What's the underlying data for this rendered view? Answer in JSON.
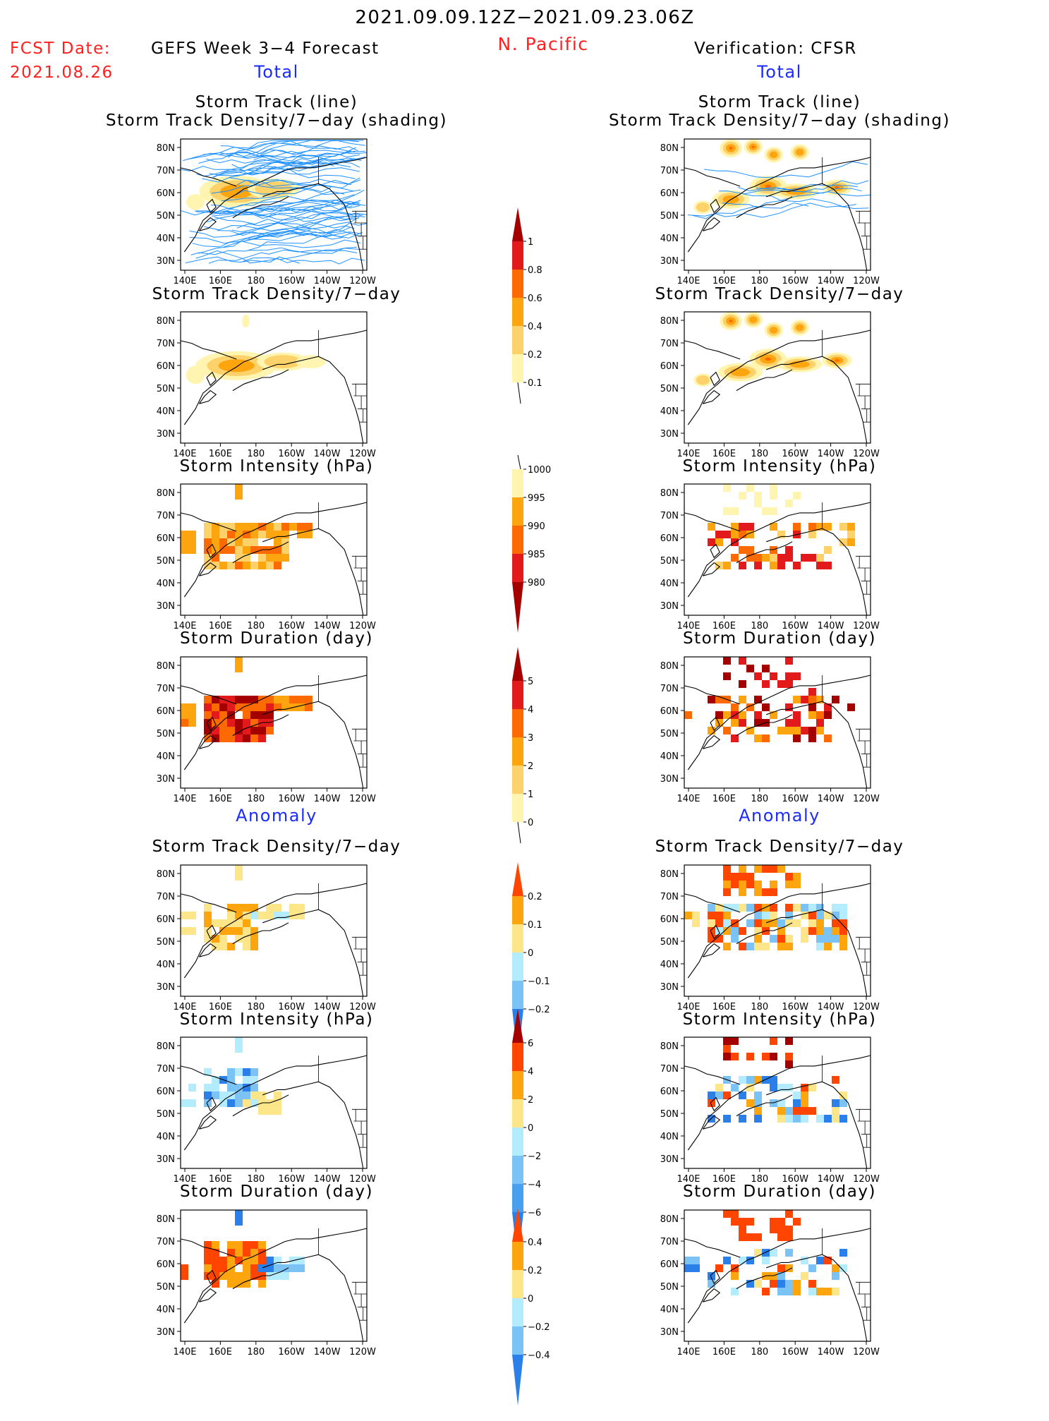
{
  "header": {
    "period": "2021.09.09.12Z−2021.09.23.06Z",
    "region": "N. Pacific",
    "fcst_label": "FCST Date:",
    "fcst_date": "2021.08.26",
    "left_title": "GEFS Week 3−4 Forecast",
    "right_title": "Verification: CFSR",
    "total_label": "Total",
    "anomaly_label": "Anomaly"
  },
  "colors": {
    "text": "#000000",
    "date_red": "#ff2020",
    "section_blue": "#1a2bff",
    "track_line": "#1e90ff"
  },
  "axes": {
    "x_ticks": [
      "140E",
      "160E",
      "180",
      "160W",
      "140W",
      "120W"
    ],
    "y_ticks": [
      "80N",
      "70N",
      "60N",
      "50N",
      "40N",
      "30N"
    ]
  },
  "chart_data": [
    {
      "id": "fcst-track",
      "side": "GEFS",
      "section": "Total",
      "type": "heatmap",
      "title": "Storm Track (line)",
      "subtitle": "Storm Track Density/7−day (shading)",
      "variable": "track density with storm track lines"
    },
    {
      "id": "fcst-density",
      "side": "GEFS",
      "section": "Total",
      "type": "heatmap",
      "title": "Storm Track Density/7−day"
    },
    {
      "id": "fcst-intensity",
      "side": "GEFS",
      "section": "Total",
      "type": "heatmap",
      "title": "Storm Intensity (hPa)"
    },
    {
      "id": "fcst-duration",
      "side": "GEFS",
      "section": "Total",
      "type": "heatmap",
      "title": "Storm Duration (day)"
    },
    {
      "id": "fcst-density-anom",
      "side": "GEFS",
      "section": "Anomaly",
      "type": "heatmap",
      "title": "Storm Track Density/7−day"
    },
    {
      "id": "fcst-intensity-anom",
      "side": "GEFS",
      "section": "Anomaly",
      "type": "heatmap",
      "title": "Storm Intensity (hPa)"
    },
    {
      "id": "fcst-duration-anom",
      "side": "GEFS",
      "section": "Anomaly",
      "type": "heatmap",
      "title": "Storm Duration (day)"
    },
    {
      "id": "ver-track",
      "side": "CFSR",
      "section": "Total",
      "type": "heatmap",
      "title": "Storm Track (line)",
      "subtitle": "Storm Track Density/7−day (shading)"
    },
    {
      "id": "ver-density",
      "side": "CFSR",
      "section": "Total",
      "type": "heatmap",
      "title": "Storm Track Density/7−day"
    },
    {
      "id": "ver-intensity",
      "side": "CFSR",
      "section": "Total",
      "type": "heatmap",
      "title": "Storm Intensity (hPa)"
    },
    {
      "id": "ver-duration",
      "side": "CFSR",
      "section": "Total",
      "type": "heatmap",
      "title": "Storm Duration (day)"
    },
    {
      "id": "ver-density-anom",
      "side": "CFSR",
      "section": "Anomaly",
      "type": "heatmap",
      "title": "Storm Track Density/7−day"
    },
    {
      "id": "ver-intensity-anom",
      "side": "CFSR",
      "section": "Anomaly",
      "type": "heatmap",
      "title": "Storm Intensity (hPa)"
    },
    {
      "id": "ver-duration-anom",
      "side": "CFSR",
      "section": "Anomaly",
      "type": "heatmap",
      "title": "Storm Duration (day)"
    }
  ],
  "colorbars": [
    {
      "id": "cb-density",
      "labels": [
        "1",
        "0.8",
        "0.6",
        "0.4",
        "0.2",
        "0.1"
      ],
      "colors": [
        "#a50000",
        "#e31a1c",
        "#fd6a02",
        "#fda50f",
        "#fdd26a",
        "#fff5b0"
      ],
      "top_arrow": true,
      "bottom_arrow": false
    },
    {
      "id": "cb-intensity",
      "labels": [
        "1000",
        "995",
        "990",
        "985",
        "980"
      ],
      "colors": [
        "#fff5b0",
        "#fda50f",
        "#fd6a02",
        "#e31a1c",
        "#a50000"
      ],
      "top_arrow": false,
      "bottom_arrow": true
    },
    {
      "id": "cb-duration",
      "labels": [
        "5",
        "4",
        "3",
        "2",
        "1",
        "0"
      ],
      "colors": [
        "#a50000",
        "#e31a1c",
        "#fd6a02",
        "#fda50f",
        "#fdd26a",
        "#fff5b0"
      ],
      "top_arrow": true,
      "bottom_arrow": false
    },
    {
      "id": "cb-density-anom",
      "labels": [
        "0.2",
        "0.1",
        "0",
        "−0.1",
        "−0.2"
      ],
      "colors": [
        "#ff4500",
        "#fda50f",
        "#fde68a",
        "#b3ecff",
        "#7cc3f5",
        "#2b7fe8"
      ],
      "top_arrow": true,
      "bottom_arrow": true
    },
    {
      "id": "cb-intensity-anom",
      "labels": [
        "6",
        "4",
        "2",
        "0",
        "−2",
        "−4",
        "−6"
      ],
      "colors": [
        "#a50000",
        "#ff4500",
        "#fda50f",
        "#fde68a",
        "#b3ecff",
        "#7cc3f5",
        "#4aa0f0",
        "#2b7fe8"
      ],
      "top_arrow": true,
      "bottom_arrow": true
    },
    {
      "id": "cb-duration-anom",
      "labels": [
        "0.4",
        "0.2",
        "0",
        "−0.2",
        "−0.4"
      ],
      "colors": [
        "#ff4500",
        "#fda50f",
        "#fde68a",
        "#b3ecff",
        "#7cc3f5",
        "#2b7fe8"
      ],
      "top_arrow": true,
      "bottom_arrow": true
    }
  ]
}
